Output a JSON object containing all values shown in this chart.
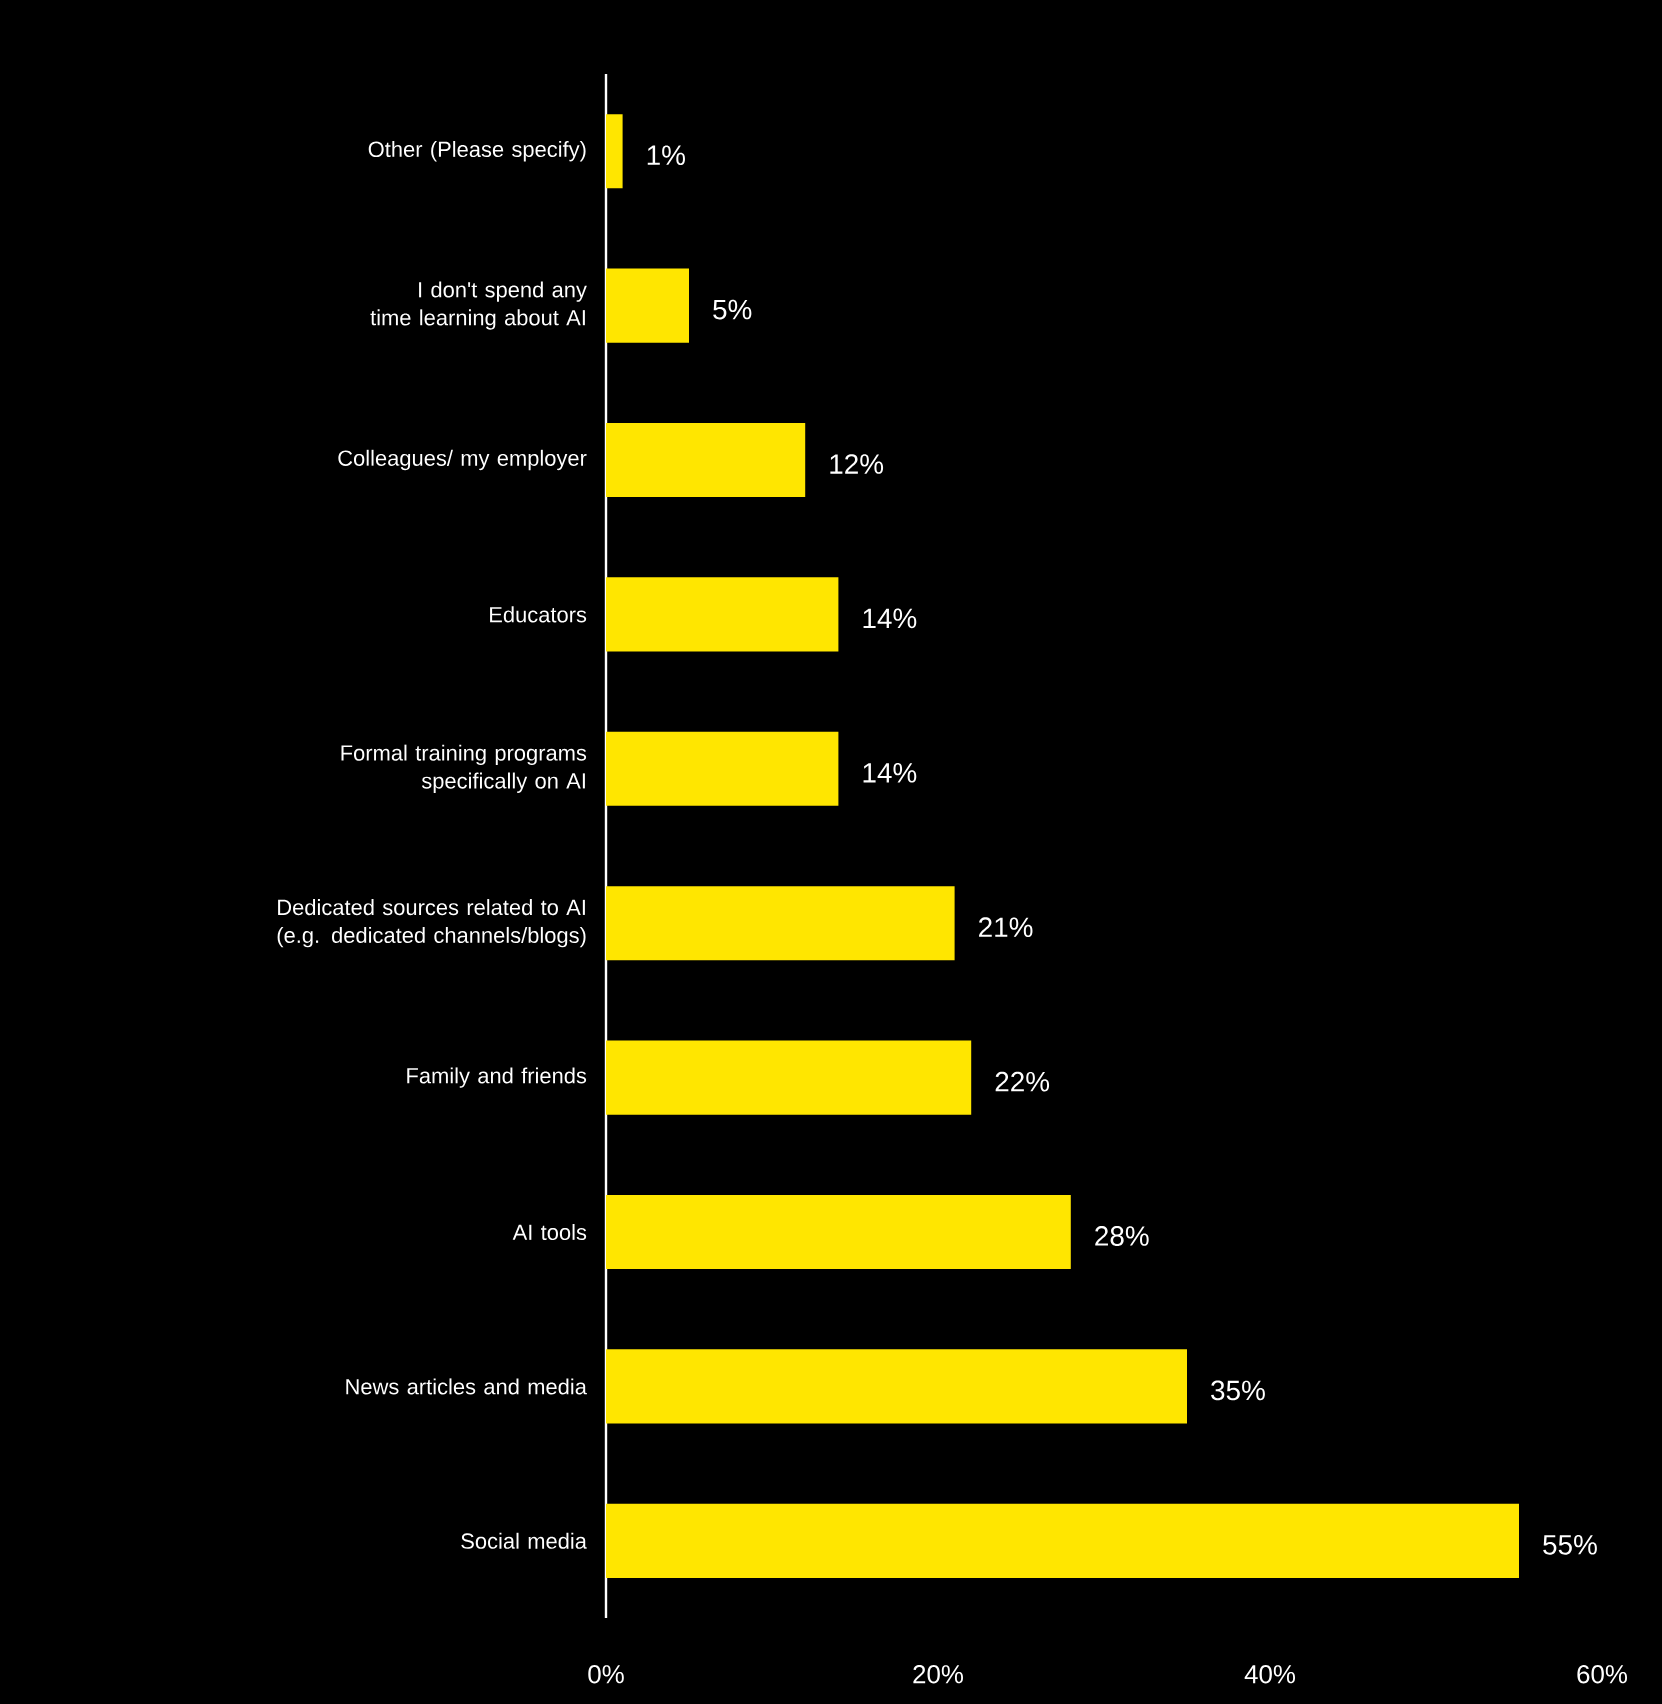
{
  "chart_data": {
    "type": "bar",
    "orientation": "horizontal",
    "categories": [
      "Other (Please specify)",
      "I don't spend any time learning about AI",
      "Colleagues/ my employer",
      "Educators",
      "Formal training programs specifically on AI",
      "Dedicated sources related to AI (e.g. dedicated channels/blogs)",
      "Family and friends",
      "AI tools",
      "News articles and media",
      "Social media"
    ],
    "values": [
      1,
      5,
      12,
      14,
      14,
      21,
      22,
      28,
      35,
      55
    ],
    "value_labels": [
      "1%",
      "5%",
      "12%",
      "14%",
      "14%",
      "21%",
      "22%",
      "28%",
      "35%",
      "55%"
    ],
    "color": "#ffe600",
    "xlim": [
      0,
      60
    ],
    "xticks": [
      {
        "value": 0,
        "label": "0%"
      },
      {
        "value": 20,
        "label": "20%"
      },
      {
        "value": 40,
        "label": "40%"
      },
      {
        "value": 60,
        "label": "60%"
      }
    ],
    "grid": false
  }
}
